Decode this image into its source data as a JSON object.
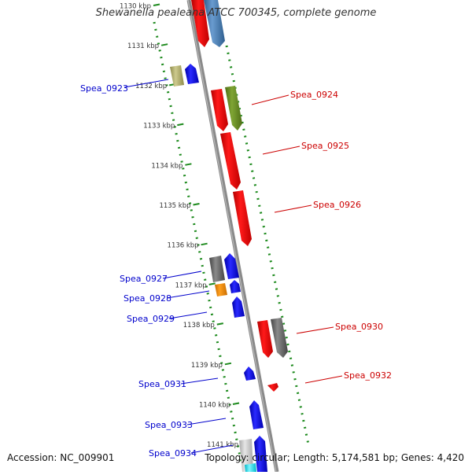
{
  "title": "Shewanella pealeana ATCC 700345, complete genome",
  "footer": {
    "accession": "Accession: NC_009901",
    "summary": "Topology: circular; Length: 5,174,581 bp; Genes: 4,420"
  },
  "tick_labels": [
    "1130 kbp",
    "1131 kbp",
    "1132 kbp",
    "1133 kbp",
    "1134 kbp",
    "1135 kbp",
    "1136 kbp",
    "1137 kbp",
    "1138 kbp",
    "1139 kbp",
    "1140 kbp",
    "1141 kbp"
  ],
  "colors": {
    "backbone": "#8a8a8a",
    "track_dots": "#1d8a1d",
    "reverse_label": "#0000cc",
    "forward_label": "#cc0000"
  },
  "gene_labels": {
    "left": [
      "Spea_0923",
      "Spea_0927",
      "Spea_0928",
      "Spea_0929",
      "Spea_0931",
      "Spea_0933",
      "Spea_0934"
    ],
    "right": [
      "Spea_0924",
      "Spea_0925",
      "Spea_0926",
      "Spea_0930",
      "Spea_0932"
    ]
  }
}
